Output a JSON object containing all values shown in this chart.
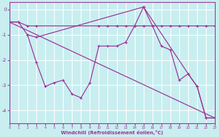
{
  "background_color": "#c8eef0",
  "grid_color": "#ffffff",
  "line_color": "#993399",
  "xlabel": "Windchill (Refroidissement éolien,°C)",
  "xlim": [
    0,
    23
  ],
  "ylim": [
    -4.5,
    0.3
  ],
  "yticks": [
    0,
    -1,
    -2,
    -3,
    -4
  ],
  "xticks": [
    0,
    1,
    2,
    3,
    4,
    5,
    6,
    7,
    8,
    9,
    10,
    11,
    12,
    13,
    14,
    15,
    16,
    17,
    18,
    19,
    20,
    21,
    22,
    23
  ],
  "line1_x": [
    0,
    1,
    2,
    3,
    10,
    11,
    12,
    13,
    14,
    15,
    16,
    17,
    18,
    19,
    20,
    21,
    22,
    23
  ],
  "line1_y": [
    -0.5,
    -0.5,
    -0.65,
    -0.65,
    -0.65,
    -0.65,
    -0.65,
    -0.65,
    -0.65,
    -0.65,
    -0.65,
    -0.65,
    -0.65,
    -0.65,
    -0.65,
    -0.65,
    -0.65,
    -0.65
  ],
  "line2_x": [
    0,
    23
  ],
  "line2_y": [
    -0.5,
    -4.3
  ],
  "line3_x": [
    2,
    3,
    4,
    5,
    6,
    7,
    8,
    9,
    10,
    11,
    12,
    13,
    14,
    15,
    16,
    17,
    18,
    19,
    20,
    21,
    22,
    23
  ],
  "line3_y": [
    -1.0,
    -2.1,
    -3.05,
    -2.9,
    -2.8,
    -3.35,
    -3.5,
    -2.9,
    -1.45,
    -1.45,
    -1.45,
    -1.3,
    -0.65,
    0.1,
    -0.65,
    -1.45,
    -1.6,
    -2.8,
    -2.55,
    -3.05,
    -4.3,
    -4.3
  ],
  "line4_x": [
    0,
    1,
    2,
    3,
    15,
    20,
    21,
    22,
    23
  ],
  "line4_y": [
    -0.5,
    -0.5,
    -1.0,
    -1.1,
    0.1,
    -2.55,
    -3.05,
    -4.3,
    -4.3
  ]
}
